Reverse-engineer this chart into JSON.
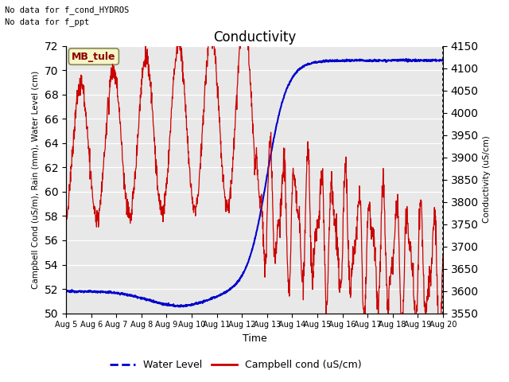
{
  "title": "Conductivity",
  "xlabel": "Time",
  "ylabel_left": "Campbell Cond (uS/m), Rain (mm), Water Level (cm)",
  "ylabel_right": "Conductivity (uS/cm)",
  "ylim_left": [
    50,
    72
  ],
  "ylim_right": [
    3550,
    4150
  ],
  "text_lines": [
    "No data for f_cond_HYDROS",
    "No data for f_ppt"
  ],
  "legend_label_blue": "Water Level",
  "legend_label_red": "Campbell cond (uS/cm)",
  "box_label": "MB_tule",
  "xtick_labels": [
    "Aug 5",
    "Aug 6",
    "Aug 7",
    "Aug 8",
    "Aug 9",
    "Aug 10",
    "Aug 11",
    "Aug 12",
    "Aug 13",
    "Aug 14",
    "Aug 15",
    "Aug 16",
    "Aug 17",
    "Aug 18",
    "Aug 19",
    "Aug 20"
  ],
  "ytick_left": [
    50,
    52,
    54,
    56,
    58,
    60,
    62,
    64,
    66,
    68,
    70,
    72
  ],
  "ytick_right": [
    3550,
    3600,
    3650,
    3700,
    3750,
    3800,
    3850,
    3900,
    3950,
    4000,
    4050,
    4100,
    4150
  ],
  "bg_color": "#e8e8e8",
  "blue_color": "#0000cc",
  "red_color": "#cc0000",
  "figsize": [
    6.4,
    4.8
  ],
  "dpi": 100
}
